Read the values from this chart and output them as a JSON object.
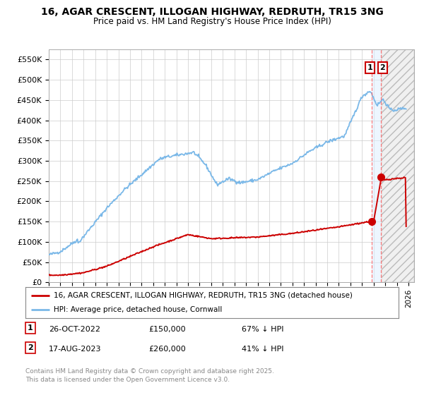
{
  "title": "16, AGAR CRESCENT, ILLOGAN HIGHWAY, REDRUTH, TR15 3NG",
  "subtitle": "Price paid vs. HM Land Registry's House Price Index (HPI)",
  "ylim": [
    0,
    575000
  ],
  "yticks": [
    0,
    50000,
    100000,
    150000,
    200000,
    250000,
    300000,
    350000,
    400000,
    450000,
    500000,
    550000
  ],
  "ytick_labels": [
    "£0",
    "£50K",
    "£100K",
    "£150K",
    "£200K",
    "£250K",
    "£300K",
    "£350K",
    "£400K",
    "£450K",
    "£500K",
    "£550K"
  ],
  "xlim_start": 1995.0,
  "xlim_end": 2026.5,
  "hpi_color": "#7ab8e8",
  "price_color": "#cc0000",
  "transaction1_x": 2022.82,
  "transaction2_x": 2023.63,
  "transaction1_y": 150000,
  "transaction2_y": 260000,
  "transaction1_label": "26-OCT-2022",
  "transaction2_label": "17-AUG-2023",
  "transaction1_price": "£150,000",
  "transaction2_price": "£260,000",
  "transaction1_pct": "67% ↓ HPI",
  "transaction2_pct": "41% ↓ HPI",
  "legend_line1": "16, AGAR CRESCENT, ILLOGAN HIGHWAY, REDRUTH, TR15 3NG (detached house)",
  "legend_line2": "HPI: Average price, detached house, Cornwall",
  "footer": "Contains HM Land Registry data © Crown copyright and database right 2025.\nThis data is licensed under the Open Government Licence v3.0.",
  "bg_color": "#ffffff",
  "grid_color": "#cccccc"
}
